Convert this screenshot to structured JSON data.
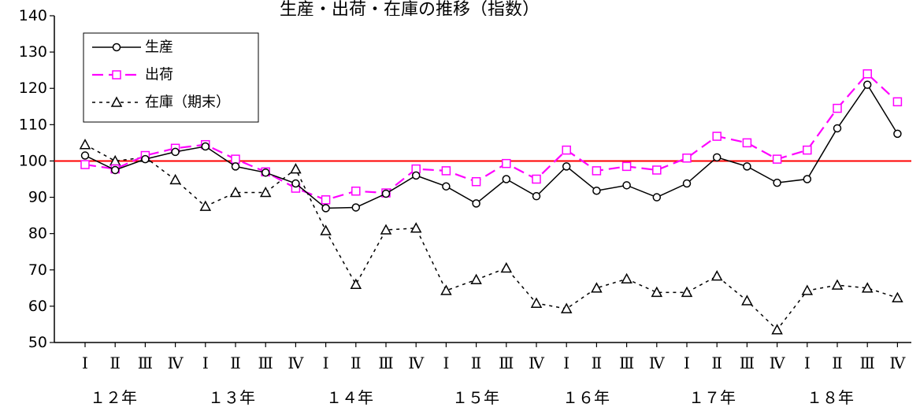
{
  "chart_data": {
    "type": "line",
    "title": "生産・出荷・在庫の推移（指数）",
    "ylim": [
      50,
      140
    ],
    "yticks": [
      50,
      60,
      70,
      80,
      90,
      100,
      110,
      120,
      130,
      140
    ],
    "reference_line": {
      "value": 100,
      "color": "#ff0000"
    },
    "quarter_labels": [
      "Ⅰ",
      "Ⅱ",
      "Ⅲ",
      "Ⅳ",
      "Ⅰ",
      "Ⅱ",
      "Ⅲ",
      "Ⅳ",
      "Ⅰ",
      "Ⅱ",
      "Ⅲ",
      "Ⅳ",
      "Ⅰ",
      "Ⅱ",
      "Ⅲ",
      "Ⅳ",
      "Ⅰ",
      "Ⅱ",
      "Ⅲ",
      "Ⅳ",
      "Ⅰ",
      "Ⅱ",
      "Ⅲ",
      "Ⅳ",
      "Ⅰ",
      "Ⅱ",
      "Ⅲ",
      "Ⅳ"
    ],
    "year_labels": [
      "１２年",
      "１３年",
      "１４年",
      "１５年",
      "１６年",
      "１７年",
      "１８年"
    ],
    "legend_position": "top-left",
    "series": [
      {
        "name": "生産",
        "color": "#000000",
        "marker": "circle",
        "line_style": "solid",
        "values": [
          101.5,
          97.5,
          100.5,
          102.5,
          104.0,
          98.5,
          96.8,
          93.8,
          87.0,
          87.2,
          91.0,
          96.0,
          93.0,
          88.3,
          95.0,
          90.3,
          98.5,
          91.8,
          93.3,
          90.0,
          93.8,
          101.0,
          98.5,
          94.0,
          95.0,
          109.0,
          121.0,
          107.5
        ]
      },
      {
        "name": "出荷",
        "color": "#ff00ff",
        "marker": "square",
        "line_style": "dashed",
        "values": [
          99.0,
          97.8,
          101.5,
          103.5,
          104.5,
          100.5,
          97.0,
          92.5,
          89.3,
          91.7,
          91.2,
          97.8,
          97.3,
          94.3,
          99.3,
          95.0,
          103.0,
          97.3,
          98.5,
          97.5,
          100.8,
          106.8,
          105.0,
          100.5,
          103.0,
          114.5,
          124.0,
          116.3
        ]
      },
      {
        "name": "在庫（期末）",
        "color": "#000000",
        "marker": "triangle",
        "line_style": "dotted",
        "values": [
          104.5,
          100.0,
          101.0,
          94.8,
          87.5,
          91.3,
          91.3,
          97.8,
          80.8,
          66.0,
          81.0,
          81.5,
          64.3,
          67.3,
          70.5,
          60.8,
          59.3,
          65.0,
          67.5,
          63.8,
          63.8,
          68.3,
          61.5,
          53.5,
          64.3,
          65.8,
          65.0,
          62.3
        ]
      }
    ]
  }
}
